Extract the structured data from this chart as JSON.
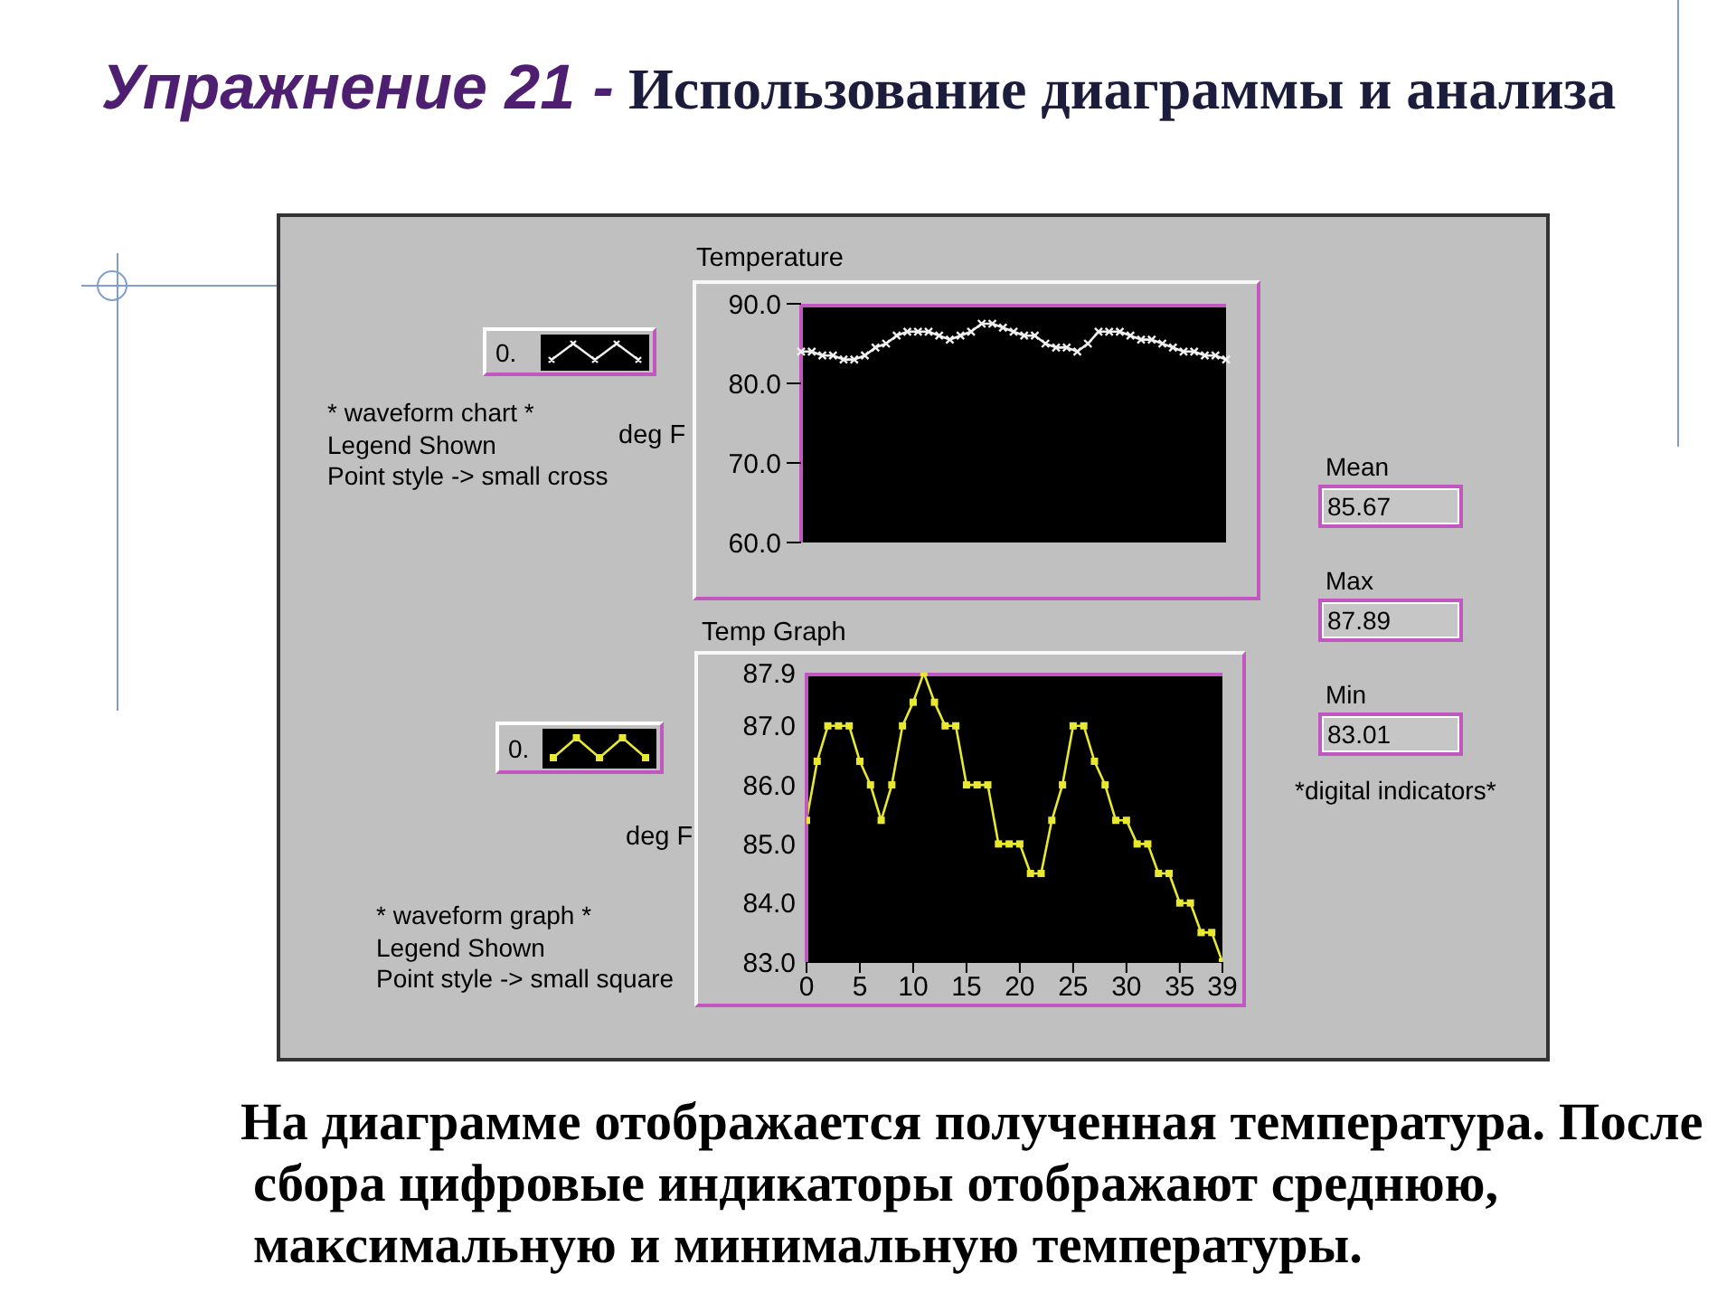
{
  "chart_data": [
    {
      "type": "other",
      "title": "Упражнение 21 - Использование диаграммы и анализа"
    },
    {
      "type": "line",
      "title": "Temperature",
      "ylabel": "deg F",
      "categories": [
        null,
        null,
        null,
        null,
        null,
        null,
        null,
        null,
        null,
        null,
        null,
        null,
        null,
        null,
        null,
        null,
        null,
        null,
        null,
        null,
        null,
        null,
        null,
        null,
        null,
        null,
        null,
        null,
        null,
        null,
        null,
        null,
        null,
        null,
        null,
        null,
        null,
        null,
        null,
        null,
        null
      ],
      "series": [
        {
          "name": "0.",
          "color": "#f0f0f0",
          "values": [
            84,
            84,
            83.5,
            83.5,
            83,
            83,
            83.5,
            84.5,
            85,
            86,
            86.5,
            86.5,
            86.5,
            86,
            85.5,
            86,
            86.5,
            87.5,
            87.5,
            87,
            86.5,
            86,
            86,
            85,
            84.5,
            84.5,
            84,
            85,
            86.5,
            86.5,
            86.5,
            86,
            85.5,
            85.5,
            85,
            84.5,
            84,
            84,
            83.5,
            83.5,
            83
          ]
        }
      ],
      "ylim": [
        60,
        90
      ],
      "yticks": [
        {
          "value": 60,
          "label": "60.0"
        },
        {
          "value": 70,
          "label": "70.0"
        },
        {
          "value": 80,
          "label": "80.0"
        },
        {
          "value": 90,
          "label": "90.0"
        }
      ],
      "tick_labels": "y",
      "legend": "left",
      "marker": "cross",
      "line_style": "solid",
      "annotations": [
        "* waveform chart *",
        "Legend Shown",
        "Point style -> small cross"
      ]
    },
    {
      "type": "line",
      "title": "Temp Graph",
      "ylabel": "deg F",
      "x": [
        0,
        1,
        2,
        3,
        4,
        5,
        6,
        7,
        8,
        9,
        10,
        11,
        12,
        13,
        14,
        15,
        16,
        17,
        18,
        19,
        20,
        21,
        22,
        23,
        24,
        25,
        26,
        27,
        28,
        29,
        30,
        31,
        32,
        33,
        34,
        35,
        36,
        37,
        38,
        39
      ],
      "series": [
        {
          "name": "0.",
          "color": "#e8e830",
          "values": [
            85.4,
            86.4,
            87,
            87,
            87,
            86.4,
            86,
            85.4,
            86,
            87,
            87.4,
            87.9,
            87.4,
            87,
            87,
            86,
            86,
            86,
            85,
            85,
            85,
            84.5,
            84.5,
            85.4,
            86,
            87,
            87,
            86.4,
            86,
            85.4,
            85.4,
            85,
            85,
            84.5,
            84.5,
            84,
            84,
            83.5,
            83.5,
            83
          ]
        }
      ],
      "xlim": [
        0,
        39
      ],
      "xticks": [
        0,
        5,
        10,
        15,
        20,
        25,
        30,
        35,
        39
      ],
      "ylim": [
        83,
        87.9
      ],
      "yticks": [
        {
          "value": 83,
          "label": "83.0"
        },
        {
          "value": 84,
          "label": "84.0"
        },
        {
          "value": 85,
          "label": "85.0"
        },
        {
          "value": 86,
          "label": "86.0"
        },
        {
          "value": 87,
          "label": "87.0"
        },
        87.9
      ],
      "legend": "left",
      "marker": "square",
      "line_style": "solid",
      "annotations": [
        "* waveform graph *",
        "Legend Shown",
        "Point style -> small square"
      ]
    },
    {
      "type": "other",
      "annotations": [
        "Mean",
        "85.67",
        "Max",
        "87.89",
        "Min",
        "83.01",
        "*digital indicators*"
      ]
    },
    {
      "type": "other",
      "annotations": [
        "На диаграмме отображается полученная температура. После сбора цифровые индикаторы отображают среднюю, максимальную и минимальную температуры."
      ]
    }
  ]
}
